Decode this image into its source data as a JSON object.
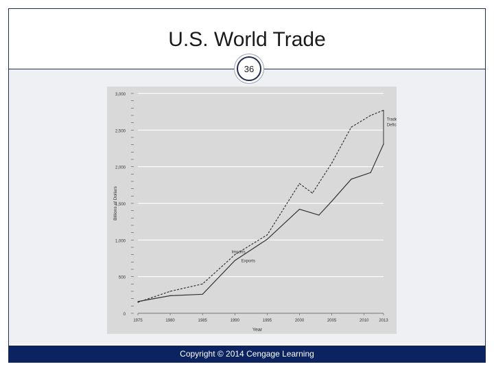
{
  "slide": {
    "title": "U.S. World Trade",
    "page_number": "36",
    "footer": "Copyright © 2014 Cengage Learning"
  },
  "colors": {
    "frame": "#1f2d4f",
    "footer_bg": "#0b2461",
    "plot_bg": "#d9d9d9",
    "line": "#333333"
  },
  "chart_data": {
    "type": "line",
    "xlabel": "Year",
    "ylabel": "Billions of Dollars",
    "xlim": [
      1975,
      2013
    ],
    "ylim": [
      0,
      3000
    ],
    "x_ticks": [
      1975,
      1980,
      1985,
      1990,
      1995,
      2000,
      2005,
      2010,
      2013
    ],
    "y_ticks": [
      0,
      500,
      1000,
      1500,
      2000,
      2500,
      3000
    ],
    "y_tick_labels": [
      "0",
      "500",
      "1,000",
      "1,500",
      "2,000",
      "2,500",
      "3,000"
    ],
    "grid": true,
    "series": [
      {
        "name": "Imports",
        "style": "dashed",
        "x": [
          1975,
          1980,
          1985,
          1990,
          1995,
          2000,
          2002,
          2005,
          2008,
          2011,
          2013
        ],
        "values": [
          150,
          300,
          400,
          800,
          1070,
          1770,
          1640,
          2050,
          2540,
          2700,
          2770
        ]
      },
      {
        "name": "Exports",
        "style": "solid",
        "x": [
          1975,
          1980,
          1985,
          1990,
          1995,
          2000,
          2003,
          2005,
          2008,
          2011,
          2013
        ],
        "values": [
          160,
          240,
          260,
          720,
          1010,
          1420,
          1340,
          1530,
          1830,
          1920,
          2310
        ]
      }
    ],
    "annotations": [
      {
        "text": "Imports",
        "x": 1989.5,
        "y": 820
      },
      {
        "text": "Exports",
        "x": 1991,
        "y": 700
      },
      {
        "text": "Trade Deficits",
        "x": 2013.3,
        "y": 2630
      }
    ]
  }
}
